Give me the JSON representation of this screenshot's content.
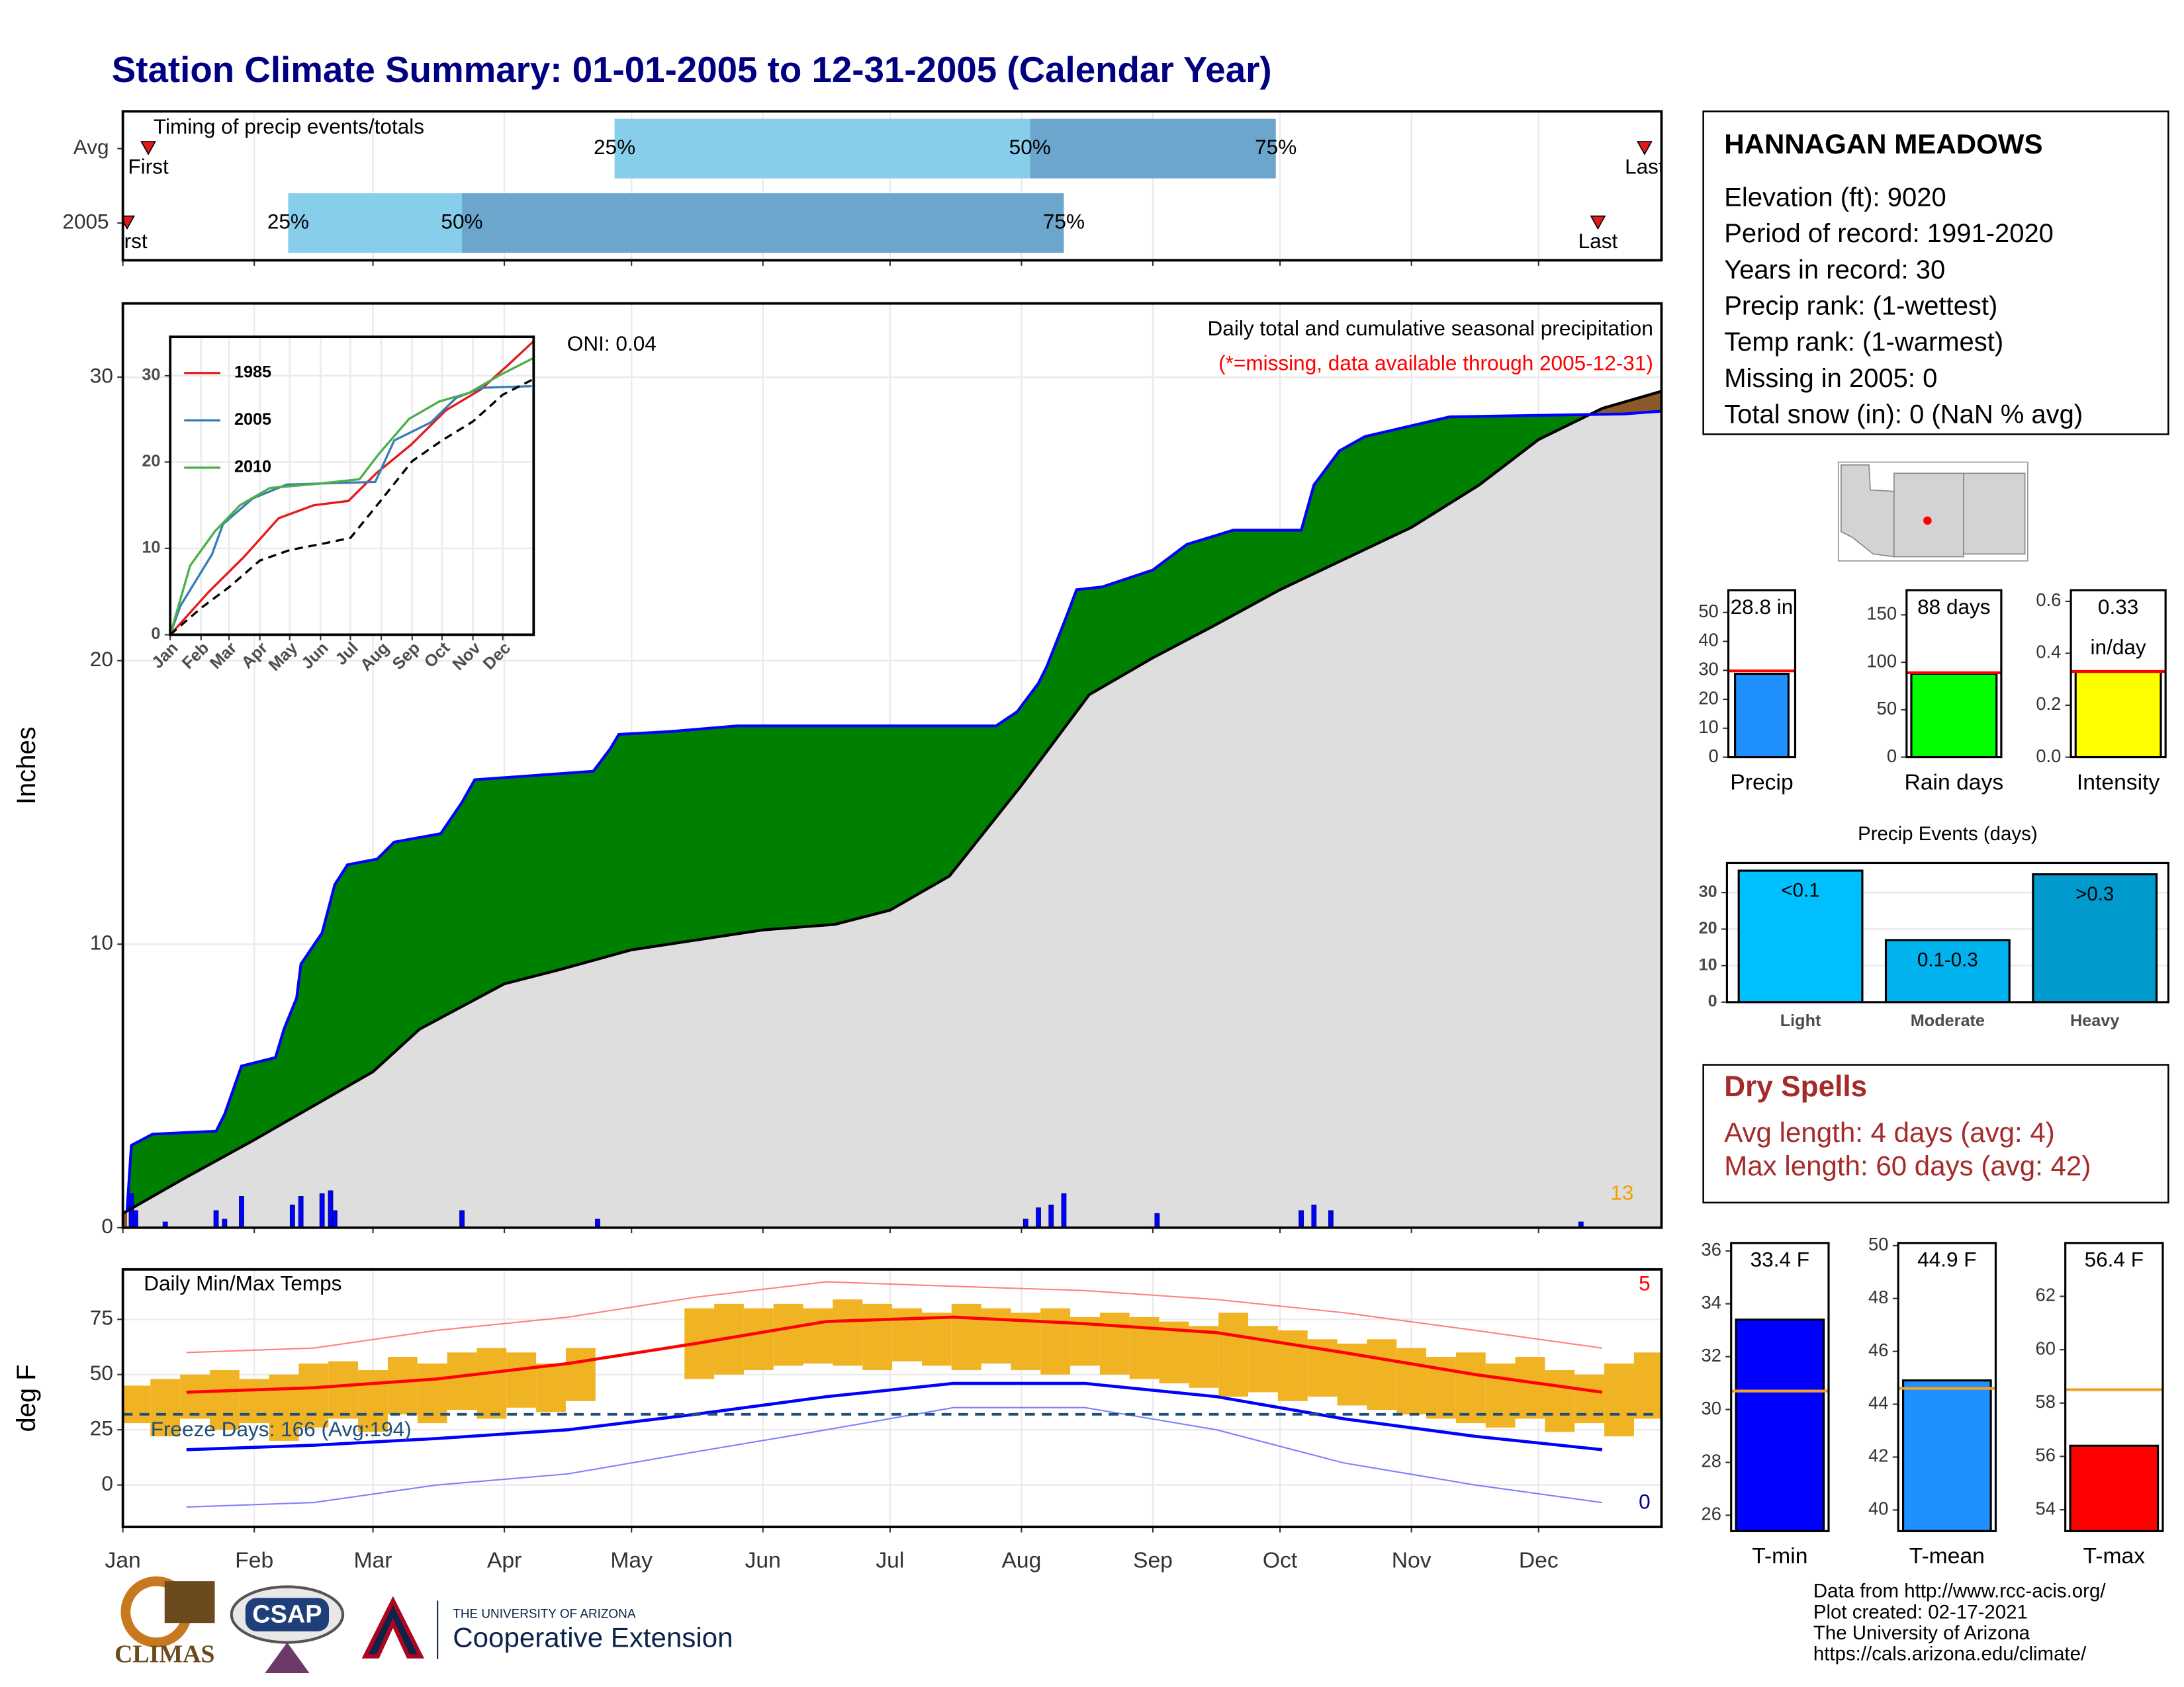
{
  "title": "Station Climate Summary: 01-01-2005 to 12-31-2005 (Calendar Year)",
  "station": {
    "name": "HANNAGAN MEADOWS",
    "lines": [
      "Elevation (ft): 9020",
      "Period of record: 1991-2020",
      "Years in record: 30",
      "Precip rank:  (1-wettest)",
      "Temp rank:  (1-warmest)",
      "Missing in 2005: 0",
      "Total snow (in): 0 (NaN % avg)"
    ]
  },
  "dry_spells": {
    "title": "Dry Spells",
    "lines": [
      "Avg length: 4 days (avg: 4)",
      "Max length: 60 days (avg: 42)"
    ]
  },
  "footer": [
    "Data from http://www.rcc-acis.org/",
    "Plot created: 02-17-2021",
    "The University of Arizona",
    "https://cals.arizona.edu/climate/"
  ],
  "logos": {
    "climas": "CLIMAS",
    "csap": "CSAP",
    "university": "THE UNIVERSITY OF ARIZONA",
    "extension": "Cooperative Extension"
  },
  "chart_data": [
    {
      "type": "timeline",
      "title": "Timing of precip events/totals",
      "xlim": [
        0,
        363
      ],
      "xticks": [
        0,
        31,
        59,
        90,
        120,
        151,
        181,
        212,
        243,
        273,
        304,
        334
      ],
      "grid": true,
      "colors": [
        "#87ceeb",
        "#6ca6cd"
      ],
      "marker_color": "#e31a1c",
      "marker_labels": {
        "first": "First",
        "last": "Last",
        "q25": "25%",
        "q50": "50%",
        "q75": "75%"
      },
      "rows": [
        {
          "label": "Avg",
          "first": 6,
          "q25": 116,
          "q50": 214,
          "q75": 272,
          "last": 359
        },
        {
          "label": "2005",
          "first": 1,
          "q25": 39,
          "q50": 80,
          "q75": 222,
          "last": 348
        }
      ]
    },
    {
      "type": "area",
      "title": "Daily total and cumulative seasonal precipitation",
      "subtitle": "(*=missing, data available through 2005-12-31)",
      "annotation": "ONI: 0.04",
      "count_label": "13",
      "ylabel": "Inches",
      "xlim": [
        0,
        363
      ],
      "ylim": [
        0,
        32.6
      ],
      "xticks": [
        0,
        31,
        59,
        90,
        120,
        151,
        181,
        212,
        243,
        273,
        304,
        334
      ],
      "yticks": [
        0,
        10,
        20,
        30
      ],
      "grid": true,
      "deficit_fill": "#8b5a2b",
      "series": [
        {
          "color": "#0000ff",
          "fill": "#008000",
          "x": [
            1,
            2,
            7,
            22,
            24,
            28,
            36,
            38,
            41,
            42,
            47,
            50,
            53,
            60,
            64,
            75,
            80,
            83,
            111,
            115,
            117,
            129,
            145,
            206,
            211,
            216,
            218,
            223,
            225,
            231,
            243,
            251,
            262,
            278,
            281,
            287,
            293,
            313,
            354,
            363
          ],
          "values": [
            0.6,
            2.9,
            3.3,
            3.4,
            4.0,
            5.7,
            6.0,
            7.0,
            8.1,
            9.3,
            10.4,
            12.1,
            12.8,
            13.0,
            13.6,
            13.9,
            15.0,
            15.8,
            16.1,
            16.9,
            17.4,
            17.5,
            17.7,
            17.7,
            18.2,
            19.2,
            19.8,
            21.7,
            22.5,
            22.6,
            23.2,
            24.1,
            24.6,
            24.6,
            26.2,
            27.4,
            27.9,
            28.6,
            28.7,
            28.8
          ]
        },
        {
          "color": "#000000",
          "fill": "#dedede",
          "x": [
            0,
            14,
            31,
            59,
            70,
            90,
            103,
            120,
            151,
            168,
            181,
            195,
            212,
            228,
            243,
            257,
            273,
            304,
            320,
            334,
            349,
            363
          ],
          "values": [
            0.5,
            1.7,
            3.1,
            5.5,
            7.0,
            8.6,
            9.1,
            9.8,
            10.5,
            10.7,
            11.2,
            12.4,
            15.6,
            18.8,
            20.1,
            21.2,
            22.5,
            24.7,
            26.2,
            27.8,
            28.9,
            29.5
          ]
        }
      ],
      "daily": {
        "color": "#0000ff",
        "x": [
          2,
          3,
          10,
          22,
          24,
          28,
          40,
          42,
          47,
          49,
          50,
          80,
          112,
          213,
          216,
          219,
          222,
          244,
          278,
          281,
          285,
          344
        ],
        "values": [
          1.2,
          0.6,
          0.2,
          0.6,
          0.3,
          1.1,
          0.8,
          1.1,
          1.2,
          1.3,
          0.6,
          0.6,
          0.3,
          0.3,
          0.7,
          0.8,
          1.2,
          0.5,
          0.6,
          0.8,
          0.6,
          0.2
        ]
      }
    },
    {
      "type": "line",
      "xlim": [
        0,
        365
      ],
      "ylim": [
        0,
        34.5
      ],
      "yticks": [
        0,
        10,
        20,
        30
      ],
      "xticks": [
        {
          "value": 0,
          "label": "Jan"
        },
        {
          "value": 31,
          "label": "Feb"
        },
        {
          "value": 59,
          "label": "Mar"
        },
        {
          "value": 90,
          "label": "Apr"
        },
        {
          "value": 120,
          "label": "May"
        },
        {
          "value": 151,
          "label": "Jun"
        },
        {
          "value": 181,
          "label": "Jul"
        },
        {
          "value": 212,
          "label": "Aug"
        },
        {
          "value": 243,
          "label": "Sep"
        },
        {
          "value": 273,
          "label": "Oct"
        },
        {
          "value": 304,
          "label": "Nov"
        },
        {
          "value": 334,
          "label": "Dec"
        }
      ],
      "grid": true,
      "series": [
        {
          "name": "1985",
          "color": "#e41a1c",
          "x": [
            0,
            39,
            74,
            109,
            144,
            179,
            207,
            242,
            277,
            312,
            340,
            365
          ],
          "values": [
            0,
            5,
            9,
            13.5,
            15,
            15.5,
            18.7,
            22,
            26,
            28.4,
            31.3,
            34
          ]
        },
        {
          "name": "2005",
          "color": "#377eb8",
          "x": [
            0,
            10,
            42,
            53,
            83,
            117,
            206,
            225,
            262,
            287,
            313,
            363
          ],
          "values": [
            0,
            3.3,
            9.3,
            12.8,
            15.8,
            17.4,
            17.7,
            22.5,
            24.6,
            27.4,
            28.6,
            28.8
          ]
        },
        {
          "name": "2010",
          "color": "#4daf4a",
          "x": [
            0,
            20,
            45,
            70,
            100,
            150,
            190,
            210,
            240,
            270,
            300,
            330,
            364
          ],
          "values": [
            0,
            8,
            12,
            15,
            17,
            17.5,
            18,
            21,
            25,
            27,
            28,
            30,
            32
          ]
        },
        {
          "color": "#000000",
          "dash": true,
          "x": [
            0,
            31,
            59,
            90,
            120,
            151,
            181,
            212,
            243,
            273,
            304,
            334,
            363
          ],
          "values": [
            0,
            3.1,
            5.5,
            8.6,
            9.8,
            10.5,
            11.2,
            15.6,
            20.1,
            22.5,
            24.7,
            27.8,
            29.5
          ]
        }
      ]
    },
    {
      "type": "range",
      "title": "Daily Min/Max Temps",
      "high_count": "5",
      "low_count": "0",
      "freeze_label": "Freeze Days: 166 (Avg:194)",
      "freeze_line": 32,
      "freeze_color": "#1f4e79",
      "ylabel": "deg F",
      "xlim": [
        0,
        363
      ],
      "ylim": [
        -19,
        97.6
      ],
      "yticks": [
        0,
        25,
        50,
        75
      ],
      "grid": true,
      "xticks": [
        {
          "value": 0,
          "label": "Jan"
        },
        {
          "value": 31,
          "label": "Feb"
        },
        {
          "value": 59,
          "label": "Mar"
        },
        {
          "value": 90,
          "label": "Apr"
        },
        {
          "value": 120,
          "label": "May"
        },
        {
          "value": 151,
          "label": "Jun"
        },
        {
          "value": 181,
          "label": "Jul"
        },
        {
          "value": 212,
          "label": "Aug"
        },
        {
          "value": 243,
          "label": "Sep"
        },
        {
          "value": 273,
          "label": "Oct"
        },
        {
          "value": 304,
          "label": "Nov"
        },
        {
          "value": 334,
          "label": "Dec"
        }
      ],
      "series": [
        {
          "color": "#ff8080",
          "width": 1,
          "x": [
            15,
            45,
            74,
            105,
            135,
            166,
            196,
            227,
            258,
            288,
            319,
            349
          ],
          "values": [
            60,
            62,
            70,
            76,
            85,
            92,
            90,
            88,
            84,
            78,
            70,
            62
          ]
        },
        {
          "color": "#8080ff",
          "width": 1,
          "x": [
            15,
            45,
            74,
            105,
            135,
            166,
            196,
            227,
            258,
            288,
            319,
            349
          ],
          "values": [
            -10,
            -8,
            0,
            5,
            15,
            25,
            35,
            35,
            25,
            10,
            0,
            -8
          ]
        },
        {
          "color": "#ff0000",
          "width": 2.2,
          "x": [
            15,
            45,
            74,
            105,
            135,
            166,
            196,
            227,
            258,
            288,
            319,
            349
          ],
          "values": [
            42,
            44,
            48,
            55,
            64,
            74,
            76,
            73,
            69,
            60,
            50,
            42
          ]
        },
        {
          "color": "#0000ff",
          "width": 2.2,
          "x": [
            15,
            45,
            74,
            105,
            135,
            166,
            196,
            227,
            258,
            288,
            319,
            349
          ],
          "values": [
            16,
            18,
            21,
            25,
            32,
            40,
            46,
            46,
            40,
            30,
            22,
            16
          ]
        }
      ],
      "observed": {
        "color": "#f0b323",
        "x": [
          3,
          10,
          17,
          24,
          31,
          38,
          45,
          52,
          59,
          66,
          73,
          80,
          87,
          94,
          101,
          108,
          115,
          122,
          129,
          136,
          143,
          150,
          157,
          164,
          171,
          178,
          185,
          192,
          199,
          206,
          213,
          220,
          227,
          234,
          241,
          248,
          255,
          262,
          269,
          276,
          283,
          290,
          297,
          304,
          311,
          318,
          325,
          332,
          339,
          346,
          353,
          360
        ],
        "low": [
          28,
          22,
          30,
          25,
          28,
          20,
          26,
          30,
          24,
          32,
          28,
          34,
          30,
          35,
          33,
          38,
          null,
          null,
          null,
          48,
          50,
          52,
          54,
          55,
          54,
          52,
          56,
          54,
          52,
          55,
          52,
          50,
          54,
          50,
          48,
          46,
          44,
          40,
          42,
          38,
          40,
          36,
          34,
          32,
          30,
          28,
          26,
          30,
          24,
          28,
          22,
          30
        ],
        "high": [
          45,
          48,
          50,
          52,
          48,
          50,
          55,
          56,
          52,
          58,
          55,
          60,
          62,
          60,
          55,
          62,
          null,
          null,
          null,
          80,
          82,
          80,
          82,
          80,
          84,
          82,
          80,
          78,
          82,
          80,
          78,
          80,
          76,
          78,
          76,
          74,
          72,
          78,
          72,
          70,
          66,
          64,
          66,
          62,
          58,
          60,
          55,
          58,
          52,
          50,
          55,
          60
        ]
      }
    },
    {
      "type": "bar",
      "categories": [
        "Precip"
      ],
      "values": [
        28.8
      ],
      "value_labels": [
        "28.8 in"
      ],
      "color": "#1e90ff",
      "average": 29.8,
      "average_color": "#ff0000",
      "ylim": [
        0,
        57.7
      ],
      "yticks": [
        0,
        10,
        20,
        30,
        40,
        50
      ]
    },
    {
      "type": "bar",
      "categories": [
        "Rain days"
      ],
      "values": [
        88
      ],
      "value_labels": [
        "88 days"
      ],
      "color": "#00ff00",
      "average": 89,
      "average_color": "#ff0000",
      "ylim": [
        0,
        176
      ],
      "yticks": [
        0,
        50,
        100,
        150
      ]
    },
    {
      "type": "bar",
      "categories": [
        "Intensity"
      ],
      "values": [
        0.33
      ],
      "value_labels": [
        "0.33"
      ],
      "unit_label": "in/day",
      "color": "#ffff00",
      "average": 0.33,
      "average_color": "#ff0000",
      "ylim": [
        0,
        0.643
      ],
      "yticks": [
        {
          "value": 0,
          "label": "0.0"
        },
        {
          "value": 0.2,
          "label": "0.2"
        },
        {
          "value": 0.4,
          "label": "0.4"
        },
        {
          "value": 0.6,
          "label": "0.6"
        }
      ]
    },
    {
      "type": "bar",
      "title": "Precip Events (days)",
      "categories": [
        "Light",
        "Moderate",
        "Heavy"
      ],
      "values": [
        36,
        17,
        35
      ],
      "bin_labels": [
        "<0.1",
        "0.1-0.3",
        ">0.3"
      ],
      "colors": [
        "#00bfff",
        "#00b2ee",
        "#009acd"
      ],
      "ylim": [
        0,
        38.1
      ],
      "yticks": [
        0,
        10,
        20,
        30
      ],
      "grid": true
    },
    {
      "type": "bar",
      "categories": [
        "T-min"
      ],
      "values": [
        33.4
      ],
      "value_labels": [
        "33.4 F"
      ],
      "color": "#0000ff",
      "average": 30.7,
      "average_color": "#f0a030",
      "ylim": [
        25.4,
        36.3
      ],
      "yticks": [
        26,
        28,
        30,
        32,
        34,
        36
      ]
    },
    {
      "type": "bar",
      "categories": [
        "T-mean"
      ],
      "values": [
        44.9
      ],
      "value_labels": [
        "44.9 F"
      ],
      "color": "#1e90ff",
      "average": 44.6,
      "average_color": "#f0a030",
      "ylim": [
        39.2,
        50.1
      ],
      "yticks": [
        40,
        42,
        44,
        46,
        48,
        50
      ]
    },
    {
      "type": "bar",
      "categories": [
        "T-max"
      ],
      "values": [
        56.4
      ],
      "value_labels": [
        "56.4 F"
      ],
      "color": "#ff0000",
      "average": 58.5,
      "average_color": "#f0a030",
      "ylim": [
        53.2,
        64
      ],
      "yticks": [
        54,
        56,
        58,
        60,
        62
      ]
    }
  ]
}
